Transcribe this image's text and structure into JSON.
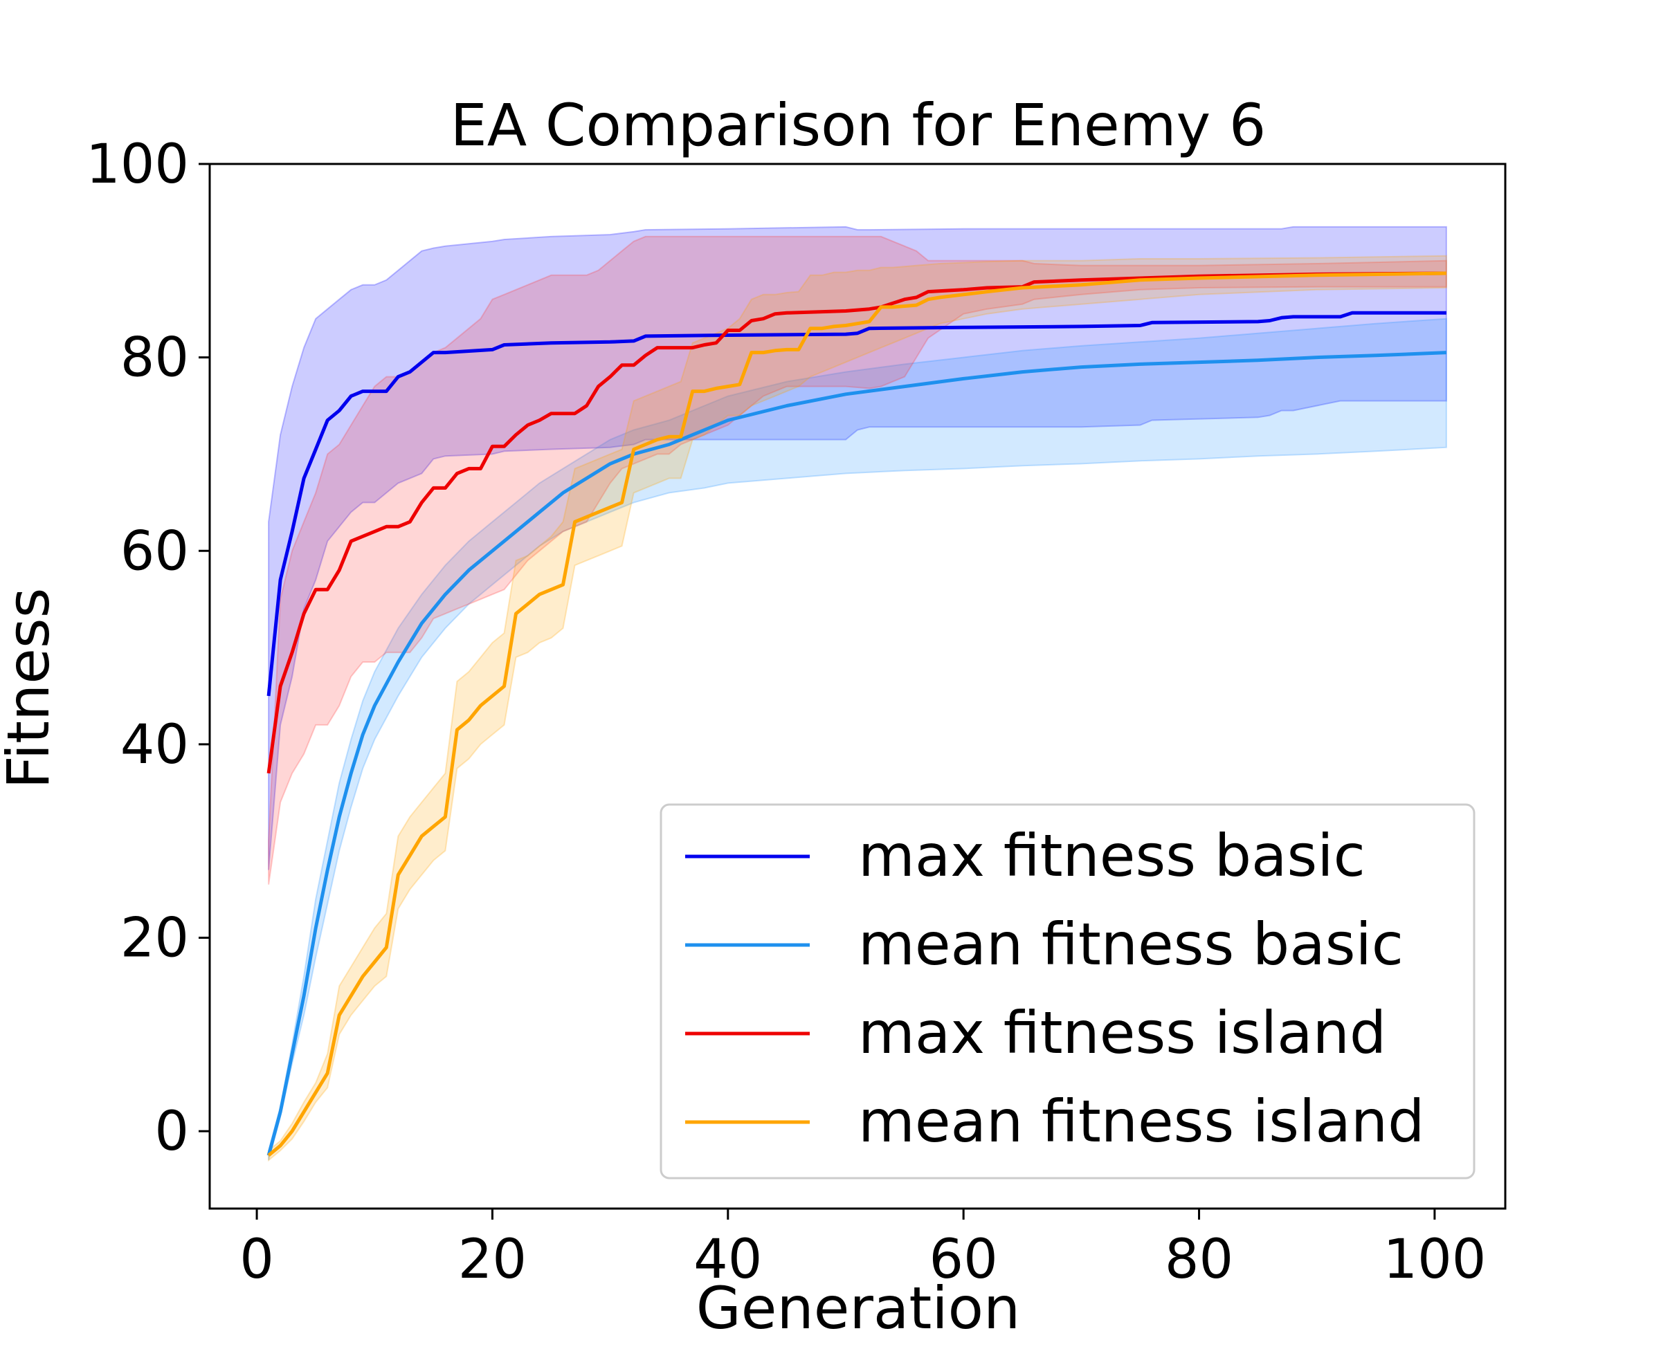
{
  "chart_data": {
    "type": "line",
    "title": "EA Comparison for Enemy 6",
    "xlabel": "Generation",
    "ylabel": "Fitness",
    "xlim": [
      -4,
      106
    ],
    "ylim": [
      -8,
      100
    ],
    "xticks": [
      "0",
      "20",
      "40",
      "60",
      "80",
      "100"
    ],
    "yticks": [
      "0",
      "20",
      "40",
      "60",
      "80",
      "100"
    ],
    "grid": false,
    "legend_position": "lower-right",
    "series": [
      {
        "name": "max fitness basic",
        "color": "#0000ee",
        "band_color": "#0000ff",
        "x": [
          1,
          2,
          3,
          4,
          5,
          6,
          7,
          8,
          9,
          10,
          11,
          12,
          13,
          14,
          15,
          16,
          20,
          21,
          25,
          30,
          32,
          33,
          40,
          50,
          51,
          52,
          60,
          70,
          75,
          76,
          85,
          86,
          87,
          88,
          92,
          93,
          100,
          101
        ],
        "values": [
          45,
          57,
          62,
          67.5,
          70.5,
          73.5,
          74.5,
          76,
          76.5,
          76.5,
          76.5,
          78,
          78.5,
          79.5,
          80.5,
          80.5,
          80.8,
          81.3,
          81.5,
          81.6,
          81.7,
          82.2,
          82.3,
          82.4,
          82.5,
          83,
          83.1,
          83.2,
          83.3,
          83.6,
          83.7,
          83.8,
          84.1,
          84.2,
          84.2,
          84.6,
          84.6,
          84.6
        ],
        "upper": [
          63,
          72,
          77,
          81,
          84,
          85,
          86,
          87,
          87.5,
          87.5,
          88,
          89,
          90,
          91,
          91.3,
          91.5,
          92,
          92.2,
          92.5,
          92.7,
          93,
          93.2,
          93.3,
          93.5,
          93.2,
          93.2,
          93.3,
          93.3,
          93.3,
          93.3,
          93.3,
          93.3,
          93.3,
          93.5,
          93.5,
          93.5,
          93.5,
          93.5
        ],
        "lower": [
          27,
          42,
          47,
          54,
          57,
          61,
          62.5,
          64,
          65,
          65,
          66,
          67,
          67.5,
          68,
          69.5,
          69.8,
          70,
          70.3,
          70.5,
          70.7,
          71,
          71.5,
          71.5,
          71.5,
          72.5,
          72.8,
          72.8,
          72.8,
          73,
          73.5,
          73.8,
          74,
          74.5,
          74.5,
          75.5,
          75.5,
          75.5,
          75.5
        ]
      },
      {
        "name": "mean fitness basic",
        "color": "#1e90ee",
        "band_color": "#1e90ff",
        "x": [
          1,
          2,
          3,
          4,
          5,
          6,
          7,
          8,
          9,
          10,
          12,
          14,
          16,
          18,
          20,
          22,
          24,
          26,
          28,
          30,
          32,
          35,
          38,
          40,
          45,
          50,
          55,
          60,
          65,
          70,
          75,
          80,
          85,
          90,
          95,
          101
        ],
        "values": [
          -2.5,
          2,
          8,
          14,
          21,
          27,
          32.5,
          37,
          41,
          44,
          48.5,
          52.5,
          55.5,
          58,
          60,
          62,
          64,
          66,
          67.5,
          69,
          70,
          71,
          72.5,
          73.5,
          75,
          76.2,
          77,
          77.8,
          78.5,
          79,
          79.3,
          79.5,
          79.7,
          80,
          80.2,
          80.5
        ],
        "upper": [
          -2,
          2.5,
          9,
          16,
          24,
          30,
          36,
          40.5,
          44.5,
          47.5,
          52,
          55.5,
          58.5,
          61,
          63,
          65,
          67,
          68.5,
          70,
          71.5,
          72.5,
          73.5,
          75,
          76,
          77.5,
          78.5,
          79.3,
          80,
          80.7,
          81.2,
          81.6,
          82,
          82.5,
          83,
          83.5,
          84
        ],
        "lower": [
          -3,
          1.5,
          7,
          12,
          18,
          23.5,
          29,
          33.5,
          37.5,
          40.5,
          45,
          49,
          52,
          54.5,
          56.5,
          58.5,
          60.5,
          62,
          63,
          64,
          65,
          66,
          66.5,
          67,
          67.5,
          68,
          68.3,
          68.5,
          68.8,
          69,
          69.3,
          69.5,
          69.8,
          70,
          70.3,
          70.7
        ]
      },
      {
        "name": "max fitness island",
        "color": "#ee0000",
        "band_color": "#ff3333",
        "x": [
          1,
          2,
          3,
          4,
          5,
          6,
          7,
          8,
          9,
          10,
          11,
          12,
          13,
          14,
          15,
          16,
          17,
          18,
          19,
          20,
          21,
          22,
          23,
          24,
          25,
          26,
          27,
          28,
          29,
          30,
          31,
          32,
          33,
          34,
          35,
          36,
          37,
          38,
          39,
          40,
          41,
          42,
          43,
          44,
          45,
          50,
          52,
          53,
          55,
          56,
          57,
          60,
          62,
          65,
          66,
          70,
          75,
          80,
          90,
          101
        ],
        "values": [
          37,
          46,
          49.5,
          53.5,
          56,
          56,
          58,
          61,
          61.5,
          62,
          62.5,
          62.5,
          63,
          65,
          66.5,
          66.5,
          68,
          68.5,
          68.5,
          70.8,
          70.8,
          72,
          73,
          73.5,
          74.2,
          74.2,
          74.2,
          75,
          77,
          78,
          79.2,
          79.2,
          80.2,
          81,
          81,
          81,
          81,
          81.3,
          81.5,
          82.8,
          82.8,
          83.8,
          84,
          84.5,
          84.6,
          84.8,
          85,
          85.2,
          86,
          86.2,
          86.8,
          87,
          87.2,
          87.3,
          87.8,
          88,
          88.2,
          88.4,
          88.6,
          88.7
        ],
        "upper": [
          30,
          55,
          60,
          63,
          66,
          70,
          71,
          73,
          75,
          77,
          78,
          78,
          78.5,
          79.5,
          80.5,
          81,
          82,
          83,
          84,
          86,
          86.5,
          87,
          87.5,
          88,
          88.5,
          88.5,
          88.5,
          88.5,
          89,
          90,
          91,
          92,
          92.5,
          92.5,
          92.5,
          92.5,
          92.5,
          92.5,
          92.5,
          92.5,
          92.5,
          92.5,
          92.5,
          92.5,
          92.5,
          92.5,
          92.5,
          92.5,
          91.5,
          91,
          90,
          90,
          90,
          90,
          89.7,
          89.5,
          89.5,
          89.5,
          89.7,
          90
        ],
        "lower": [
          25.5,
          34,
          37,
          39,
          42,
          42,
          44,
          47,
          48.5,
          48.5,
          49.5,
          49.5,
          49.5,
          51,
          53,
          53.5,
          54,
          54.5,
          55,
          55.5,
          56,
          57.5,
          59,
          60,
          61,
          62,
          62.5,
          63,
          65,
          67,
          68.5,
          69,
          69.5,
          70,
          70,
          71,
          71.5,
          72,
          72.5,
          73,
          74,
          75,
          76,
          76.5,
          77,
          77,
          76.8,
          77,
          78,
          80,
          82,
          84.5,
          85,
          85.5,
          86,
          86.5,
          87,
          87.2,
          87.3,
          87.3
        ]
      },
      {
        "name": "mean fitness island",
        "color": "#ffa500",
        "band_color": "#ffa500",
        "x": [
          1,
          2,
          3,
          4,
          5,
          6,
          7,
          8,
          9,
          10,
          11,
          12,
          13,
          14,
          15,
          16,
          17,
          18,
          19,
          20,
          21,
          22,
          23,
          24,
          25,
          26,
          27,
          28,
          29,
          30,
          31,
          32,
          33,
          34,
          35,
          36,
          37,
          38,
          39,
          40,
          41,
          42,
          43,
          44,
          45,
          46,
          47,
          48,
          49,
          50,
          51,
          52,
          53,
          54,
          55,
          56,
          57,
          58,
          60,
          62,
          65,
          70,
          75,
          80,
          90,
          101
        ],
        "values": [
          -2.5,
          -1.5,
          0,
          2,
          4,
          6,
          12,
          14,
          16,
          17.5,
          19,
          26.5,
          28.5,
          30.5,
          31.5,
          32.5,
          41.5,
          42.5,
          44,
          45,
          46,
          53.5,
          54.5,
          55.5,
          56,
          56.5,
          63,
          63.5,
          64,
          64.5,
          65,
          70.5,
          71,
          71.5,
          71.8,
          71.8,
          76.5,
          76.5,
          76.8,
          77,
          77.2,
          80.5,
          80.5,
          80.7,
          80.8,
          80.8,
          83,
          83,
          83.2,
          83.3,
          83.5,
          83.7,
          85.2,
          85.2,
          85.3,
          85.4,
          86,
          86.2,
          86.5,
          86.8,
          87.2,
          87.5,
          88,
          88.2,
          88.5,
          88.7
        ],
        "upper": [
          -2,
          -1,
          0.8,
          3,
          5,
          8,
          15,
          17,
          19,
          21,
          22.5,
          30.5,
          32.5,
          34,
          35.5,
          37,
          46.5,
          47.5,
          49,
          50.5,
          51.5,
          59,
          59.5,
          60.5,
          61.5,
          63,
          68.5,
          69,
          69.5,
          70,
          70.5,
          75.5,
          76,
          76.5,
          77,
          77.5,
          81.5,
          82,
          82.5,
          83,
          84,
          86,
          86.5,
          86.5,
          86.7,
          86.8,
          88.5,
          88.5,
          88.8,
          88.8,
          89,
          89,
          89.3,
          89.3,
          89.4,
          89.5,
          89.6,
          89.7,
          89.8,
          89.9,
          90,
          90,
          90.2,
          90.2,
          90.3,
          90.5
        ],
        "lower": [
          -3,
          -2,
          -0.8,
          1,
          3,
          4.5,
          10,
          12,
          13.5,
          15,
          16,
          23,
          25,
          26.5,
          28,
          29,
          37.5,
          38.5,
          40,
          41,
          42,
          49,
          49.5,
          50.5,
          51,
          52,
          58.5,
          59,
          59.5,
          60,
          60.5,
          66,
          66.5,
          67,
          67.5,
          67.5,
          71.5,
          72,
          73,
          74,
          74,
          75,
          75.5,
          76,
          76.5,
          77,
          78,
          78.5,
          79,
          79.5,
          80,
          80.5,
          81,
          81.5,
          82,
          82.5,
          83,
          83.5,
          84,
          84.5,
          85,
          85.5,
          86,
          86.5,
          87,
          87.2
        ]
      }
    ]
  }
}
